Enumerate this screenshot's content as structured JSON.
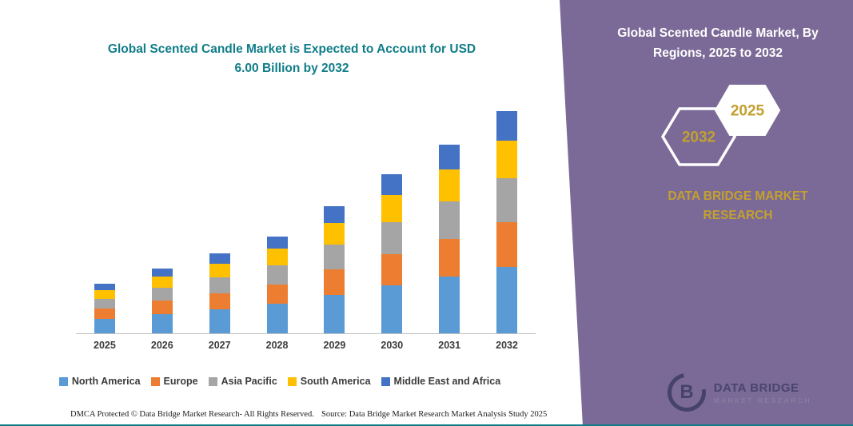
{
  "header": {
    "title_lines": "Global Scented Candle Market is Expected to Account for USD\n6.00 Billion by 2032"
  },
  "chart_data": {
    "type": "bar",
    "stacked": true,
    "title": "Global Scented Candle Market is Expected to Account for USD 6.00 Billion by 2032",
    "units": "USD Billion",
    "categories": [
      "2025",
      "2026",
      "2027",
      "2028",
      "2029",
      "2030",
      "2031",
      "2032"
    ],
    "series": [
      {
        "name": "North America",
        "color": "#5B9BD5",
        "values": [
          0.4,
          0.53,
          0.65,
          0.79,
          1.03,
          1.29,
          1.53,
          1.8
        ]
      },
      {
        "name": "Europe",
        "color": "#ED7D31",
        "values": [
          0.27,
          0.35,
          0.43,
          0.52,
          0.69,
          0.86,
          1.02,
          1.2
        ]
      },
      {
        "name": "Asia Pacific",
        "color": "#A5A5A5",
        "values": [
          0.27,
          0.35,
          0.43,
          0.52,
          0.69,
          0.86,
          1.02,
          1.2
        ]
      },
      {
        "name": "South America",
        "color": "#FFC000",
        "values": [
          0.23,
          0.3,
          0.37,
          0.45,
          0.58,
          0.73,
          0.87,
          1.02
        ]
      },
      {
        "name": "Middle East and Africa",
        "color": "#4472C4",
        "values": [
          0.17,
          0.23,
          0.28,
          0.34,
          0.45,
          0.56,
          0.66,
          0.78
        ]
      }
    ],
    "xlabel": "",
    "ylabel": "",
    "ylim": [
      0,
      6.2
    ],
    "grid": false,
    "legend_position": "bottom",
    "note": "segment values estimated from bar heights; 2032 total labeled as USD 6.00 Billion"
  },
  "footer": {
    "left": "DMCA Protected © Data Bridge Market Research-  All Rights Reserved.",
    "right": "Source: Data Bridge Market Research  Market Analysis Study 2025"
  },
  "panel": {
    "title_lines": "Global Scented Candle Market, By\nRegions, 2025 to 2032",
    "hex_left": "2032",
    "hex_right": "2025",
    "brand_lines": "DATA BRIDGE MARKET\nRESEARCH",
    "accent_gold": "#c3a02f",
    "background": "#7b6a97"
  },
  "logo": {
    "initial": "B",
    "name": "DATA BRIDGE",
    "sub": "MARKET RESEARCH"
  },
  "colors": {
    "title_teal": "#0f7d89",
    "bottom_rule": "#0f7d89"
  }
}
